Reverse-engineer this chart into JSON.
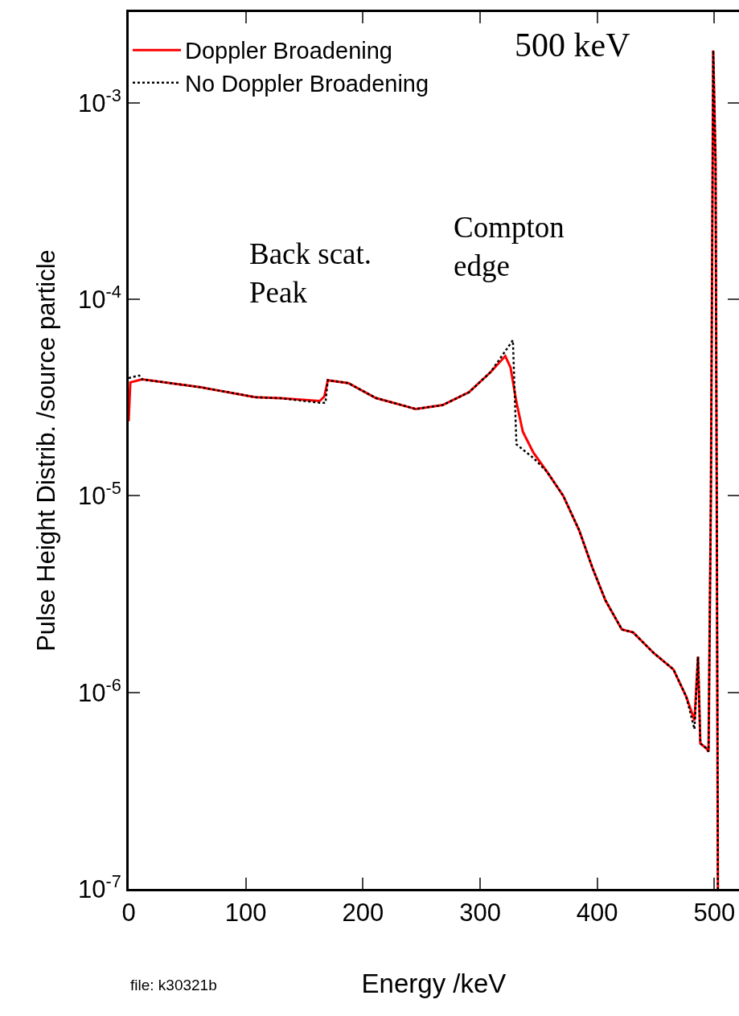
{
  "chart_data": {
    "type": "line",
    "xlabel": "Energy /keV",
    "ylabel": "Pulse Height Distrib. /source particle",
    "log": "y",
    "grid": false,
    "legend": "top left",
    "marker": "none",
    "xlim": [
      0,
      521
    ],
    "xticks": [
      0,
      100,
      200,
      300,
      400,
      500
    ],
    "ylim": [
      1e-07,
      0.0029
    ],
    "yticks": [
      {
        "value": 1e-07,
        "label": "10$^{-7}$"
      },
      {
        "value": 1e-06,
        "label": "10$^{-6}$"
      },
      {
        "value": 1e-05,
        "label": "10$^{-5}$"
      },
      {
        "value": 0.0001,
        "label": "10$^{-4}$"
      },
      {
        "value": 0.001,
        "label": "10$^{-3}$"
      }
    ],
    "annotations": [
      "500 keV",
      "Back scat.\nPeak",
      "Compton\nedge",
      "file: k30321b"
    ],
    "series": [
      {
        "name": "Doppler Broadening",
        "color": "#ff0000",
        "line_style": "solid",
        "x": [
          0,
          1.4,
          11.5,
          62,
          108,
          130,
          163,
          167,
          170,
          187.5,
          211,
          245,
          268,
          290.5,
          309,
          321.5,
          326,
          331,
          336.5,
          345.5,
          357,
          371,
          384.6,
          396,
          407,
          421,
          430.6,
          448.5,
          465,
          476,
          483,
          486,
          488,
          493,
          495,
          497,
          499,
          501,
          502,
          503
        ],
        "values": [
          2.4e-05,
          3.78e-05,
          3.92e-05,
          3.57e-05,
          3.18e-05,
          3.14e-05,
          3.04e-05,
          3.2e-05,
          3.88e-05,
          3.75e-05,
          3.15e-05,
          2.77e-05,
          2.9e-05,
          3.37e-05,
          4.27e-05,
          5.15e-05,
          4.5e-05,
          3e-05,
          2.12e-05,
          1.66e-05,
          1.33e-05,
          1e-05,
          6.67e-06,
          4.29e-06,
          2.94e-06,
          2.09e-06,
          2.02e-06,
          1.58e-06,
          1.31e-06,
          9.5e-07,
          7.2e-07,
          1.52e-06,
          5.5e-07,
          5.2e-07,
          5e-07,
          1e-05,
          0.00185,
          0.0005,
          1e-05,
          1e-07
        ]
      },
      {
        "name": "No Doppler Broadening",
        "color": "#000000",
        "line_style": "dotted",
        "x": [
          0,
          9,
          11.5,
          62,
          108,
          130,
          163,
          168,
          170,
          187.5,
          211,
          245,
          268,
          290.5,
          309,
          328,
          331,
          345.5,
          357,
          371,
          384.6,
          396,
          407,
          421,
          430.6,
          448.5,
          465,
          476,
          483,
          486,
          488,
          493,
          495,
          497,
          499,
          501,
          502,
          503
        ],
        "values": [
          3.98e-05,
          4.1e-05,
          3.92e-05,
          3.57e-05,
          3.18e-05,
          3.14e-05,
          2.98e-05,
          2.98e-05,
          3.88e-05,
          3.75e-05,
          3.15e-05,
          2.77e-05,
          2.9e-05,
          3.37e-05,
          4.27e-05,
          6.2e-05,
          1.83e-05,
          1.56e-05,
          1.33e-05,
          1e-05,
          6.67e-06,
          4.29e-06,
          2.94e-06,
          2.09e-06,
          2.02e-06,
          1.58e-06,
          1.31e-06,
          9.5e-07,
          6.5e-07,
          1.52e-06,
          5.5e-07,
          5.2e-07,
          5e-07,
          1e-05,
          0.00185,
          0.0005,
          1e-05,
          1e-07
        ]
      }
    ]
  }
}
